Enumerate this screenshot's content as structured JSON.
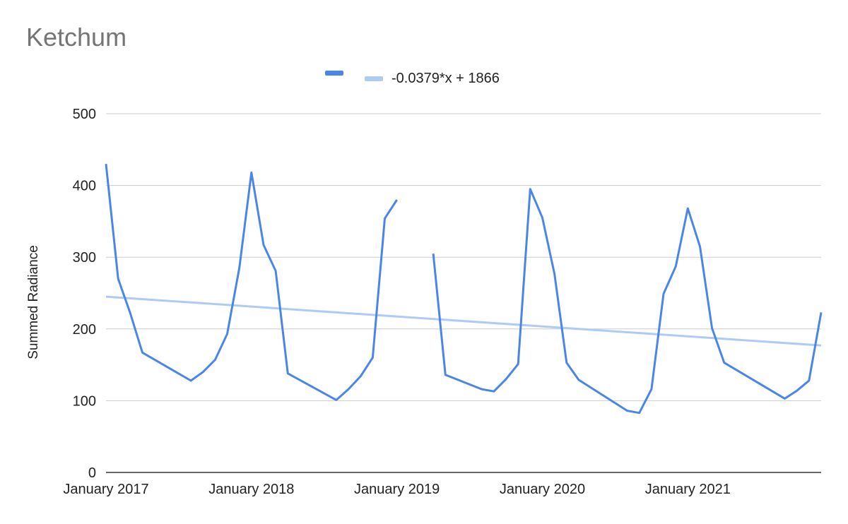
{
  "chart_data": {
    "type": "line",
    "title": "Ketchum",
    "xlabel": "",
    "ylabel": "Summed Radiance",
    "ylim": [
      0,
      500
    ],
    "y_ticks": [
      0,
      100,
      200,
      300,
      400,
      500
    ],
    "x_ticks": [
      "January 2017",
      "January 2018",
      "January 2019",
      "January 2020",
      "January 2021"
    ],
    "grid": true,
    "legend_position": "top",
    "series": [
      {
        "color": "#4a86e8",
        "points": [
          {
            "x": "2017-01",
            "y": 430
          },
          {
            "x": "2017-02",
            "y": 270
          },
          {
            "x": "2017-03",
            "y": 222
          },
          {
            "x": "2017-04",
            "y": 167
          },
          {
            "x": "2017-08",
            "y": 128
          },
          {
            "x": "2017-09",
            "y": 140
          },
          {
            "x": "2017-10",
            "y": 157
          },
          {
            "x": "2017-11",
            "y": 193
          },
          {
            "x": "2017-12",
            "y": 285
          },
          {
            "x": "2018-01",
            "y": 418
          },
          {
            "x": "2018-02",
            "y": 317
          },
          {
            "x": "2018-03",
            "y": 281
          },
          {
            "x": "2018-04",
            "y": 138
          },
          {
            "x": "2018-08",
            "y": 101
          },
          {
            "x": "2018-09",
            "y": 116
          },
          {
            "x": "2018-10",
            "y": 134
          },
          {
            "x": "2018-11",
            "y": 160
          },
          {
            "x": "2018-12",
            "y": 354
          },
          {
            "x": "2019-01",
            "y": 380
          },
          {
            "x": "2019-02",
            "y": null
          },
          {
            "x": "2019-03",
            "y": null
          },
          {
            "x": "2019-04",
            "y": 305
          },
          {
            "x": "2019-05",
            "y": 136
          },
          {
            "x": "2019-08",
            "y": 116
          },
          {
            "x": "2019-09",
            "y": 113
          },
          {
            "x": "2019-10",
            "y": 130
          },
          {
            "x": "2019-11",
            "y": 151
          },
          {
            "x": "2019-12",
            "y": 395
          },
          {
            "x": "2020-01",
            "y": 355
          },
          {
            "x": "2020-02",
            "y": 277
          },
          {
            "x": "2020-03",
            "y": 153
          },
          {
            "x": "2020-04",
            "y": 129
          },
          {
            "x": "2020-08",
            "y": 86
          },
          {
            "x": "2020-09",
            "y": 83
          },
          {
            "x": "2020-10",
            "y": 116
          },
          {
            "x": "2020-11",
            "y": 249
          },
          {
            "x": "2020-12",
            "y": 287
          },
          {
            "x": "2021-01",
            "y": 368
          },
          {
            "x": "2021-02",
            "y": 315
          },
          {
            "x": "2021-03",
            "y": 201
          },
          {
            "x": "2021-04",
            "y": 153
          },
          {
            "x": "2021-09",
            "y": 103
          },
          {
            "x": "2021-10",
            "y": 114
          },
          {
            "x": "2021-11",
            "y": 128
          },
          {
            "x": "2021-12",
            "y": 223
          }
        ]
      },
      {
        "name": "-0.0379*x + 1866",
        "type": "trendline",
        "color": "#aecbf5",
        "points": [
          {
            "x": "2017-01",
            "y": 245
          },
          {
            "x": "2021-12",
            "y": 177
          }
        ]
      }
    ]
  }
}
